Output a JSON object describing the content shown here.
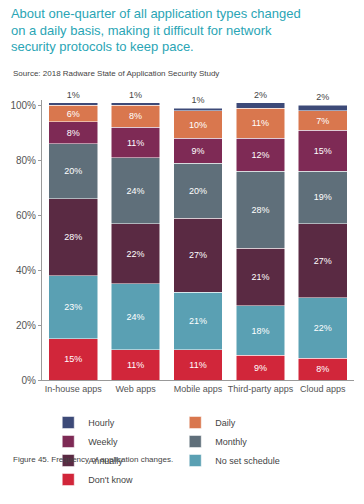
{
  "chart_data": {
    "type": "bar",
    "stacked": true,
    "title": "About one-quarter of all application types changed\non a daily basis, making it difficult for network\nsecurity protocols to keep pace.",
    "subtitle": "Source: 2018 Radware State of Application Security Study",
    "caption": "Figure 45. Frequency of application changes.",
    "categories": [
      "In-house apps",
      "Web apps",
      "Mobile apps",
      "Third-party apps",
      "Cloud apps"
    ],
    "series": [
      {
        "name": "Don't know",
        "color": "#d1263a",
        "values": [
          15,
          11,
          11,
          9,
          8
        ],
        "value_labels": [
          "15%",
          "11%",
          "11%",
          "9%",
          "8%"
        ]
      },
      {
        "name": "No set schedule",
        "color": "#5aa0b3",
        "values": [
          23,
          24,
          21,
          18,
          22
        ],
        "value_labels": [
          "23%",
          "24%",
          "21%",
          "18%",
          "22%"
        ]
      },
      {
        "name": "Annually",
        "color": "#5a2a43",
        "values": [
          28,
          22,
          27,
          21,
          27
        ],
        "value_labels": [
          "28%",
          "22%",
          "27%",
          "21%",
          "27%"
        ]
      },
      {
        "name": "Monthly",
        "color": "#5f6f7a",
        "values": [
          20,
          24,
          20,
          28,
          19
        ],
        "value_labels": [
          "20%",
          "24%",
          "20%",
          "28%",
          "19%"
        ]
      },
      {
        "name": "Weekly",
        "color": "#7e2a55",
        "values": [
          8,
          11,
          9,
          12,
          15
        ],
        "value_labels": [
          "8%",
          "11%",
          "9%",
          "12%",
          "15%"
        ]
      },
      {
        "name": "Daily",
        "color": "#d9774e",
        "values": [
          6,
          8,
          10,
          11,
          7
        ],
        "value_labels": [
          "6%",
          "8%",
          "10%",
          "11%",
          "7%"
        ]
      },
      {
        "name": "Hourly",
        "color": "#3d4a78",
        "values": [
          1,
          1,
          1,
          2,
          2
        ],
        "value_labels": [
          "1%",
          "1%",
          "1%",
          "2%",
          "2%"
        ]
      }
    ],
    "ylim": [
      0,
      102
    ],
    "yticks": [
      {
        "value": 0,
        "label": "0%"
      },
      {
        "value": 20,
        "label": "20%"
      },
      {
        "value": 40,
        "label": "40%"
      },
      {
        "value": 60,
        "label": "60%"
      },
      {
        "value": 80,
        "label": "80%"
      },
      {
        "value": 100,
        "label": "100%"
      }
    ],
    "grid": false,
    "data_labels": true,
    "legend": "bottom"
  }
}
